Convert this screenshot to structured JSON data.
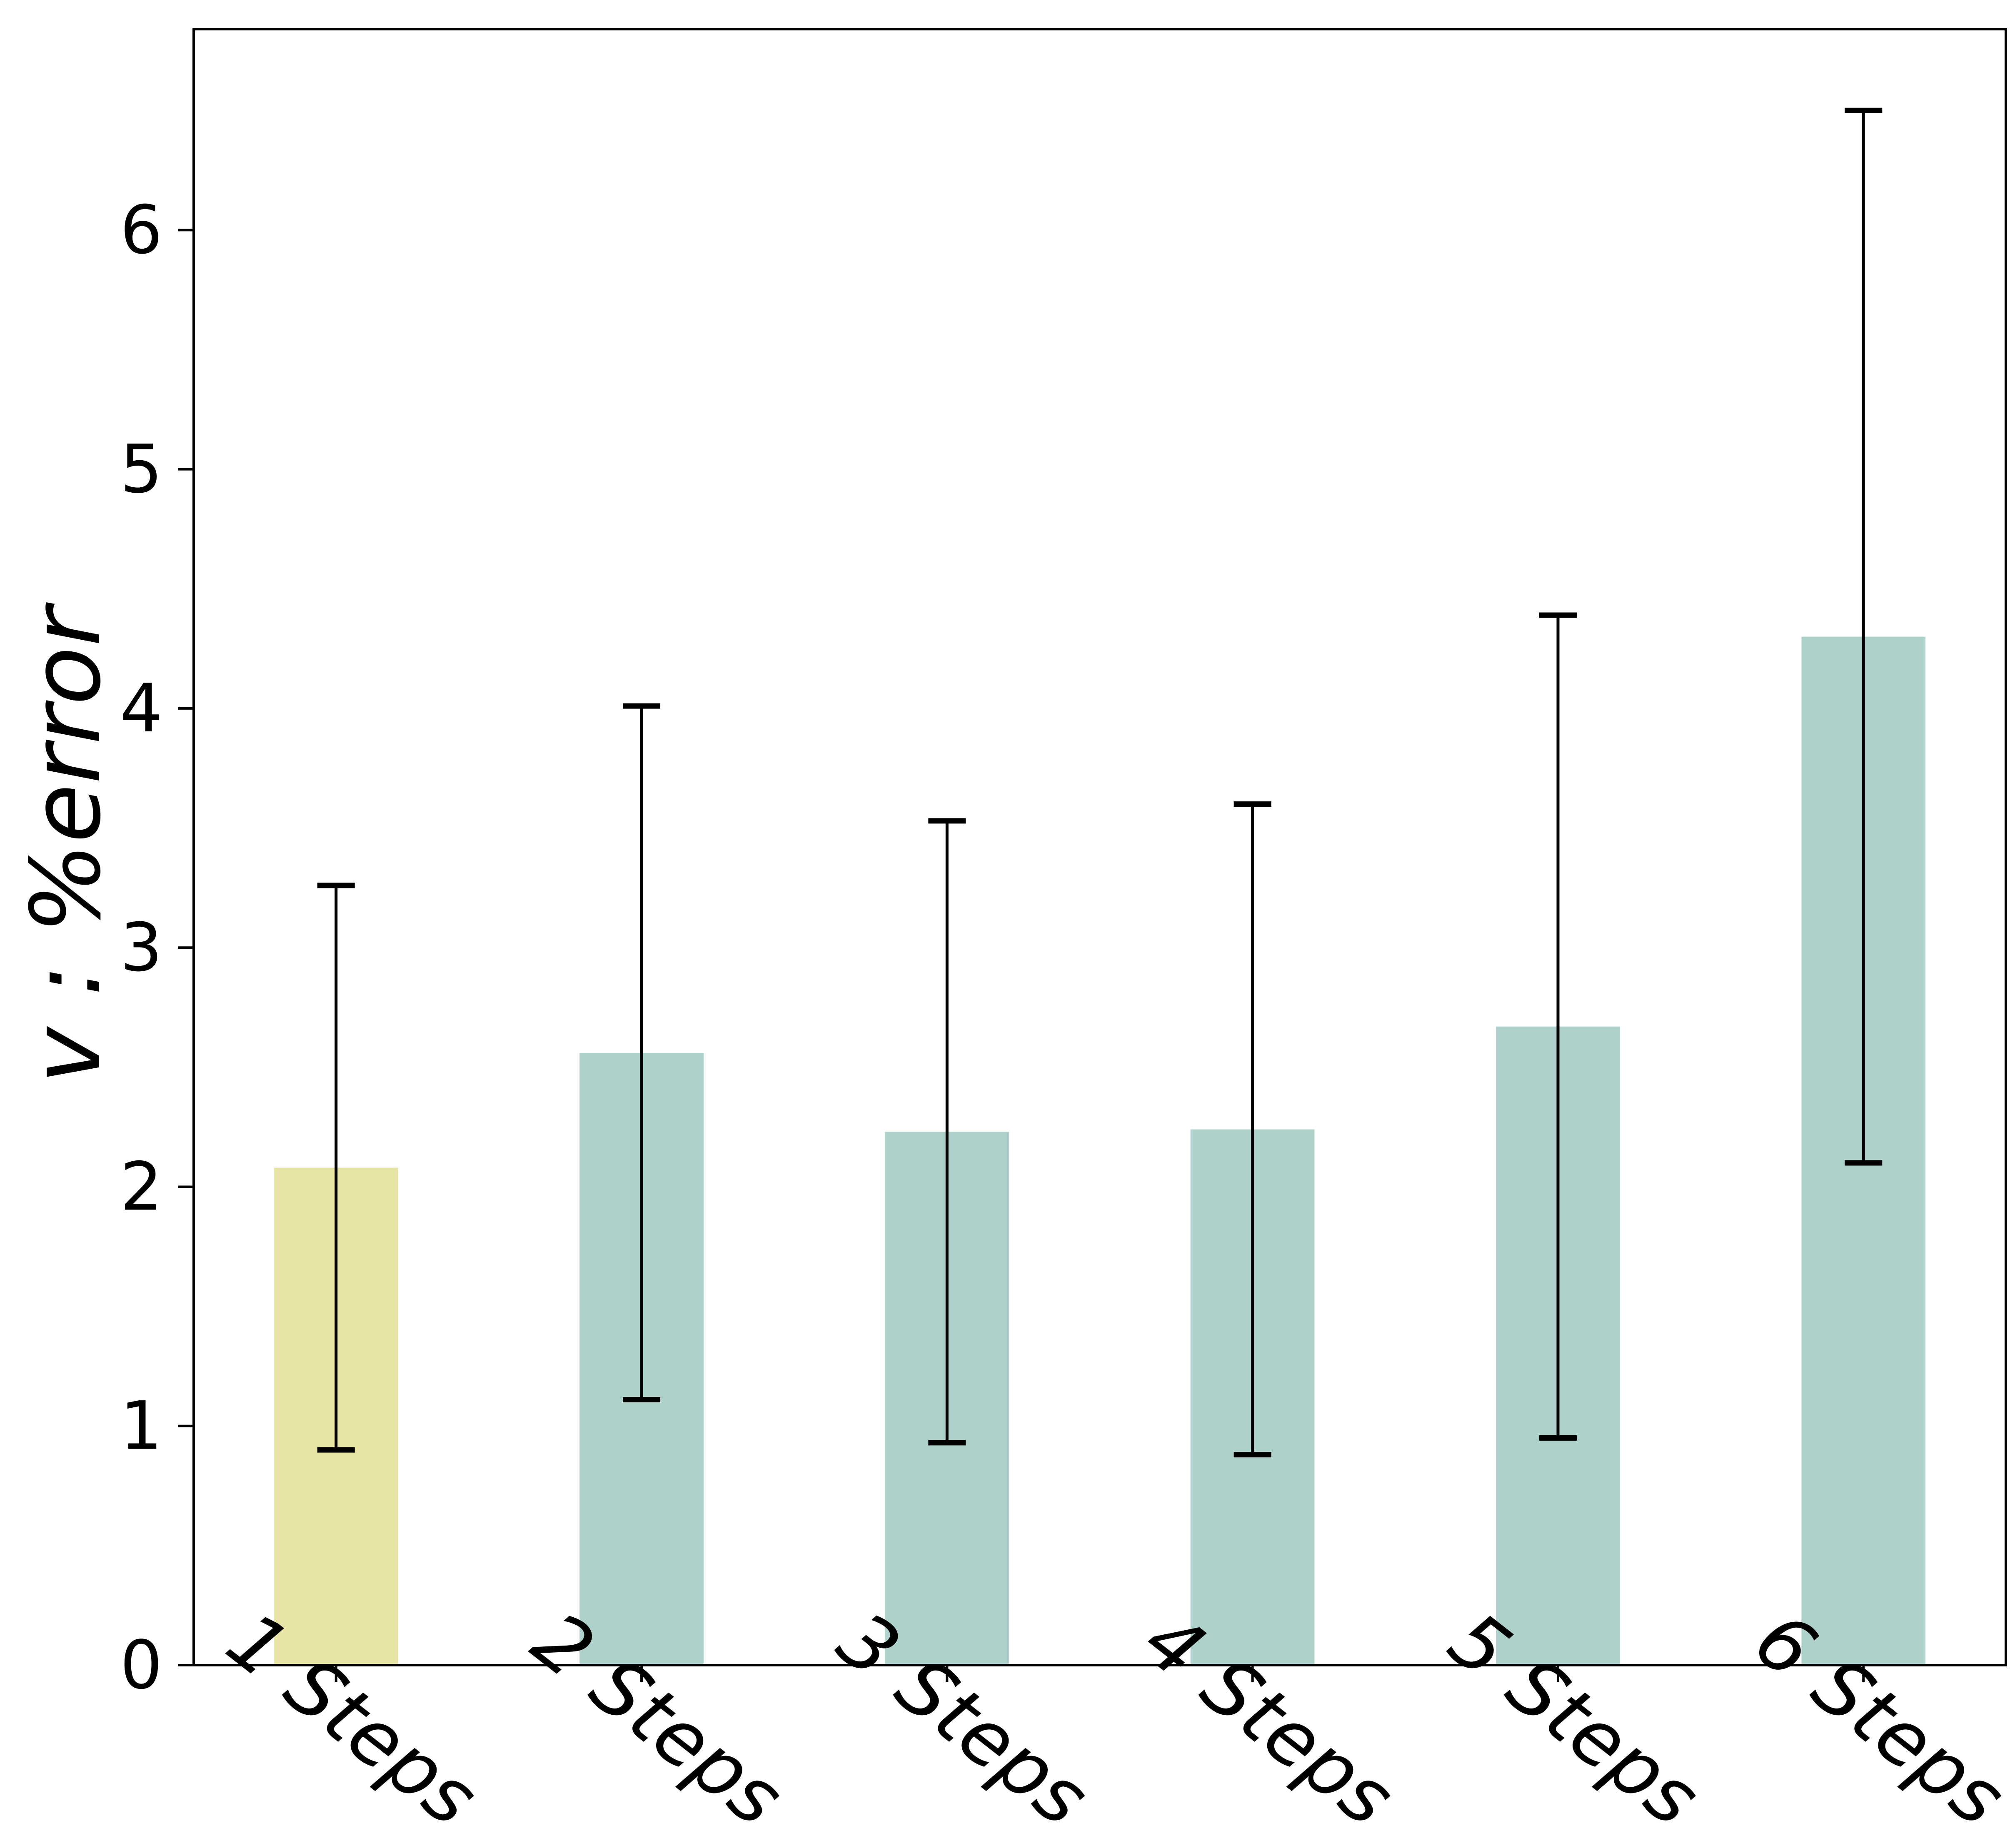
{
  "chart_data": {
    "type": "bar",
    "title": "",
    "xlabel": "",
    "ylabel": "v : %error",
    "categories": [
      "1 Steps",
      "2 Steps",
      "3 Steps",
      "4 Steps",
      "5 Steps",
      "6 Steps"
    ],
    "values": [
      2.08,
      2.56,
      2.23,
      2.24,
      2.67,
      4.3
    ],
    "errors": [
      1.18,
      1.45,
      1.3,
      1.36,
      1.72,
      2.2
    ],
    "bar_colors": [
      "#e7e4a6",
      "#afd1cc",
      "#afd1cc",
      "#afd1cc",
      "#afd1cc",
      "#afd1cc"
    ],
    "error_bar_color": "#000000",
    "yticks": [
      "0",
      "1",
      "2",
      "3",
      "4",
      "5",
      "6"
    ],
    "ylim": [
      0,
      6.84
    ],
    "grid": false,
    "legend_position": "none",
    "x_tick_label_rotation_deg": 38,
    "background_color": "#ffffff",
    "spine_color": "#000000"
  }
}
